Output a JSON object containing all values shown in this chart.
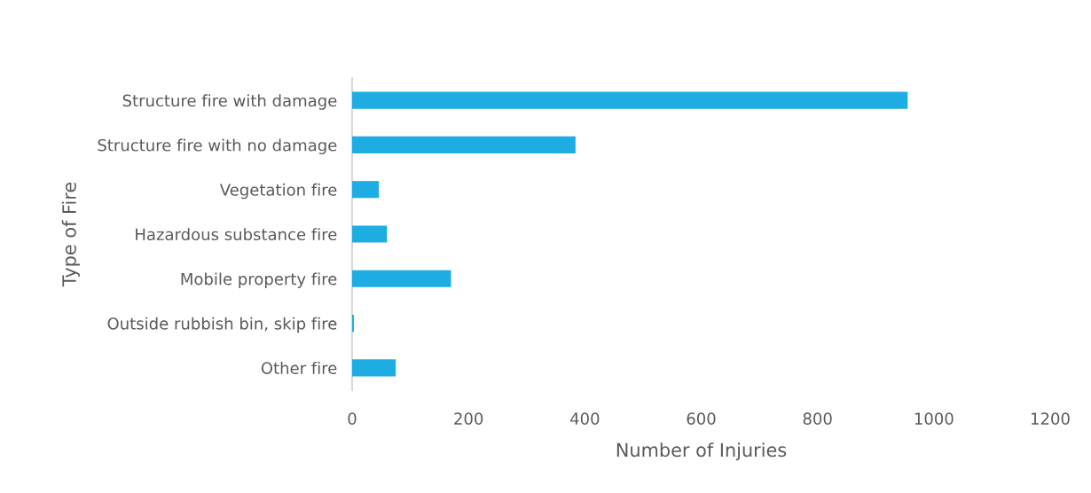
{
  "chart_data": {
    "type": "bar",
    "orientation": "horizontal",
    "categories": [
      "Structure fire with damage",
      "Structure fire with no damage",
      "Vegetation fire",
      "Hazardous substance fire",
      "Mobile property fire",
      "Outside rubbish bin, skip fire",
      "Other fire"
    ],
    "values": [
      955,
      384,
      46,
      60,
      170,
      3,
      75
    ],
    "color": "#1eade3",
    "xlabel": "Number of Injuries",
    "ylabel": "Type of Fire",
    "xlim": [
      0,
      1200
    ],
    "xticks": [
      0,
      200,
      400,
      600,
      800,
      1000,
      1200
    ],
    "grid": false
  }
}
